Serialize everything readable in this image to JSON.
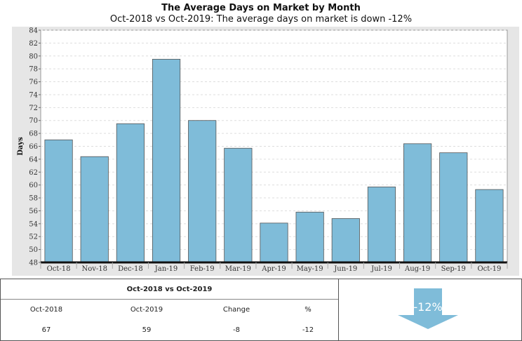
{
  "header": {
    "title": "The Average Days on Market by Month",
    "subtitle": "Oct-2018 vs Oct-2019: The average days on market is down -12%"
  },
  "chart_data": {
    "type": "bar",
    "categories": [
      "Oct-18",
      "Nov-18",
      "Dec-18",
      "Jan-19",
      "Feb-19",
      "Mar-19",
      "Apr-19",
      "May-19",
      "Jun-19",
      "Jul-19",
      "Aug-19",
      "Sep-19",
      "Oct-19"
    ],
    "values": [
      67,
      64.4,
      69.5,
      79.5,
      70,
      65.7,
      54.1,
      55.8,
      54.8,
      59.7,
      66.4,
      65,
      59.3
    ],
    "ylabel": "Days",
    "xlabel": "",
    "ylim": [
      48,
      84
    ],
    "yticks": [
      48,
      50,
      52,
      54,
      56,
      58,
      60,
      62,
      64,
      66,
      68,
      70,
      72,
      74,
      76,
      78,
      80,
      82,
      84
    ],
    "bar_color": "#7fbcd9",
    "grid": true,
    "legend": "none"
  },
  "summary": {
    "title": "Oct-2018 vs Oct-2019",
    "columns": [
      "Oct-2018",
      "Oct-2019",
      "Change",
      "%"
    ],
    "values": [
      "67",
      "59",
      "-8",
      "-12"
    ]
  },
  "indicator": {
    "label": "-12%",
    "direction": "down",
    "color": "#7fbcd9"
  }
}
